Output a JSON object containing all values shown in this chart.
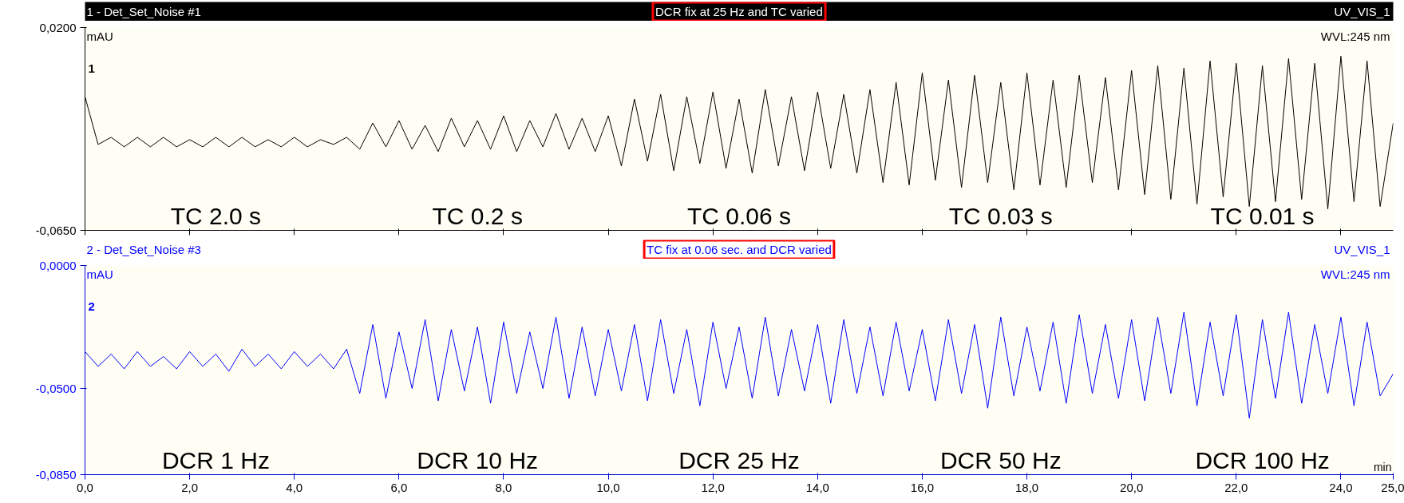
{
  "chart_data": [
    {
      "type": "line",
      "title": "1 - Det_Set_Noise #1",
      "subtitle": "DCR fix at 25 Hz and TC varied",
      "ylabel": "mAU",
      "tick_labels": "y",
      "annotations": [
        "UV_VIS_1",
        "WVL:245 nm",
        "1",
        "TC 2.0 s",
        "TC 0.2 s",
        "TC 0.06 s",
        "TC 0.03 s",
        "TC 0.01 s"
      ],
      "xlim": [
        0,
        25
      ],
      "xticks": [
        {
          "value": 0,
          "label": null
        },
        {
          "value": 2,
          "label": null
        },
        {
          "value": 4,
          "label": null
        },
        {
          "value": 6,
          "label": null
        },
        {
          "value": 8,
          "label": null
        },
        {
          "value": 10,
          "label": null
        },
        {
          "value": 12,
          "label": null
        },
        {
          "value": 14,
          "label": null
        },
        {
          "value": 16,
          "label": null
        },
        {
          "value": 18,
          "label": null
        },
        {
          "value": 20,
          "label": null
        },
        {
          "value": 22,
          "label": null
        },
        {
          "value": 24,
          "label": null
        }
      ],
      "ylim": [
        -0.065,
        0.02
      ],
      "yticks": [
        {
          "value": -0.065,
          "label": "-0,0650"
        },
        {
          "value": 0.02,
          "label": "0,0200"
        }
      ],
      "x": [
        0,
        0.25,
        0.5,
        0.75,
        1,
        1.25,
        1.5,
        1.75,
        2,
        2.25,
        2.5,
        2.75,
        3,
        3.25,
        3.5,
        3.75,
        4,
        4.25,
        4.5,
        4.75,
        5,
        5.25,
        5.5,
        5.75,
        6,
        6.25,
        6.5,
        6.75,
        7,
        7.25,
        7.5,
        7.75,
        8,
        8.25,
        8.5,
        8.75,
        9,
        9.25,
        9.5,
        9.75,
        10,
        10.25,
        10.5,
        10.75,
        11,
        11.25,
        11.5,
        11.75,
        12,
        12.25,
        12.5,
        12.75,
        13,
        13.25,
        13.5,
        13.75,
        14,
        14.25,
        14.5,
        14.75,
        15,
        15.25,
        15.5,
        15.75,
        16,
        16.25,
        16.5,
        16.75,
        17,
        17.25,
        17.5,
        17.75,
        18,
        18.25,
        18.5,
        18.75,
        19,
        19.25,
        19.5,
        19.75,
        20,
        20.25,
        20.5,
        20.75,
        21,
        21.25,
        21.5,
        21.75,
        22,
        22.25,
        22.5,
        22.75,
        23,
        23.25,
        23.5,
        23.75,
        24,
        24.25,
        24.5,
        24.75,
        25
      ],
      "series": [
        {
          "color": "#000000",
          "values": [
            -0.009,
            -0.029,
            -0.026,
            -0.03,
            -0.026,
            -0.03,
            -0.026,
            -0.03,
            -0.027,
            -0.03,
            -0.026,
            -0.03,
            -0.026,
            -0.03,
            -0.027,
            -0.03,
            -0.026,
            -0.03,
            -0.027,
            -0.029,
            -0.026,
            -0.031,
            -0.02,
            -0.03,
            -0.019,
            -0.031,
            -0.021,
            -0.032,
            -0.018,
            -0.03,
            -0.019,
            -0.031,
            -0.017,
            -0.032,
            -0.019,
            -0.03,
            -0.016,
            -0.031,
            -0.018,
            -0.032,
            -0.017,
            -0.038,
            -0.01,
            -0.036,
            -0.008,
            -0.04,
            -0.009,
            -0.037,
            -0.007,
            -0.039,
            -0.01,
            -0.041,
            -0.006,
            -0.038,
            -0.009,
            -0.04,
            -0.007,
            -0.039,
            -0.008,
            -0.041,
            -0.006,
            -0.045,
            -0.003,
            -0.046,
            0.001,
            -0.044,
            -0.002,
            -0.047,
            0.0,
            -0.045,
            -0.003,
            -0.048,
            0.001,
            -0.046,
            -0.002,
            -0.047,
            0.0,
            -0.045,
            -0.001,
            -0.048,
            0.002,
            -0.05,
            0.004,
            -0.052,
            0.003,
            -0.054,
            0.006,
            -0.051,
            0.005,
            -0.055,
            0.004,
            -0.053,
            0.007,
            -0.052,
            0.005,
            -0.056,
            0.008,
            -0.053,
            0.006,
            -0.055,
            -0.02
          ]
        }
      ]
    },
    {
      "type": "line",
      "title": "2 - Det_Set_Noise #3",
      "subtitle": "TC fix at 0.06 sec. and DCR varied",
      "ylabel": "mAU",
      "xlabel": "min",
      "annotations": [
        "UV_VIS_1",
        "WVL:245 nm",
        "2",
        "DCR 1 Hz",
        "DCR 10 Hz",
        "DCR 25 Hz",
        "DCR 50 Hz",
        "DCR 100 Hz"
      ],
      "xlim": [
        0,
        25
      ],
      "xticks": [
        {
          "value": 0,
          "label": "0,0"
        },
        {
          "value": 2,
          "label": "2,0"
        },
        {
          "value": 4,
          "label": "4,0"
        },
        {
          "value": 6,
          "label": "6,0"
        },
        {
          "value": 8,
          "label": "8,0"
        },
        {
          "value": 10,
          "label": "10,0"
        },
        {
          "value": 12,
          "label": "12,0"
        },
        {
          "value": 14,
          "label": "14,0"
        },
        {
          "value": 16,
          "label": "16,0"
        },
        {
          "value": 18,
          "label": "18,0"
        },
        {
          "value": 20,
          "label": "20,0"
        },
        {
          "value": 22,
          "label": "22,0"
        },
        {
          "value": 24,
          "label": "24,0"
        },
        {
          "value": 25,
          "label": "25,0"
        }
      ],
      "ylim": [
        -0.085,
        0.0
      ],
      "yticks": [
        {
          "value": -0.085,
          "label": "-0,0850"
        },
        {
          "value": -0.05,
          "label": "-0,0500"
        },
        {
          "value": 0.0,
          "label": "0,0000"
        }
      ],
      "x": [
        0,
        0.25,
        0.5,
        0.75,
        1,
        1.25,
        1.5,
        1.75,
        2,
        2.25,
        2.5,
        2.75,
        3,
        3.25,
        3.5,
        3.75,
        4,
        4.25,
        4.5,
        4.75,
        5,
        5.25,
        5.5,
        5.75,
        6,
        6.25,
        6.5,
        6.75,
        7,
        7.25,
        7.5,
        7.75,
        8,
        8.25,
        8.5,
        8.75,
        9,
        9.25,
        9.5,
        9.75,
        10,
        10.25,
        10.5,
        10.75,
        11,
        11.25,
        11.5,
        11.75,
        12,
        12.25,
        12.5,
        12.75,
        13,
        13.25,
        13.5,
        13.75,
        14,
        14.25,
        14.5,
        14.75,
        15,
        15.25,
        15.5,
        15.75,
        16,
        16.25,
        16.5,
        16.75,
        17,
        17.25,
        17.5,
        17.75,
        18,
        18.25,
        18.5,
        18.75,
        19,
        19.25,
        19.5,
        19.75,
        20,
        20.25,
        20.5,
        20.75,
        21,
        21.25,
        21.5,
        21.75,
        22,
        22.25,
        22.5,
        22.75,
        23,
        23.25,
        23.5,
        23.75,
        24,
        24.25,
        24.5,
        24.75,
        25
      ],
      "series": [
        {
          "color": "#0000ff",
          "values": [
            -0.035,
            -0.041,
            -0.036,
            -0.042,
            -0.035,
            -0.041,
            -0.037,
            -0.042,
            -0.035,
            -0.041,
            -0.036,
            -0.043,
            -0.034,
            -0.041,
            -0.036,
            -0.042,
            -0.035,
            -0.041,
            -0.036,
            -0.042,
            -0.034,
            -0.052,
            -0.024,
            -0.054,
            -0.027,
            -0.05,
            -0.022,
            -0.055,
            -0.026,
            -0.051,
            -0.025,
            -0.056,
            -0.023,
            -0.052,
            -0.027,
            -0.05,
            -0.021,
            -0.054,
            -0.025,
            -0.053,
            -0.026,
            -0.051,
            -0.024,
            -0.055,
            -0.022,
            -0.052,
            -0.026,
            -0.057,
            -0.023,
            -0.05,
            -0.025,
            -0.054,
            -0.021,
            -0.053,
            -0.026,
            -0.051,
            -0.024,
            -0.056,
            -0.022,
            -0.052,
            -0.025,
            -0.053,
            -0.023,
            -0.051,
            -0.026,
            -0.055,
            -0.022,
            -0.052,
            -0.024,
            -0.058,
            -0.021,
            -0.053,
            -0.025,
            -0.051,
            -0.023,
            -0.056,
            -0.02,
            -0.052,
            -0.024,
            -0.054,
            -0.022,
            -0.055,
            -0.021,
            -0.052,
            -0.019,
            -0.057,
            -0.023,
            -0.053,
            -0.02,
            -0.062,
            -0.022,
            -0.054,
            -0.019,
            -0.056,
            -0.024,
            -0.052,
            -0.021,
            -0.057,
            -0.023,
            -0.053,
            -0.044
          ]
        }
      ]
    }
  ]
}
